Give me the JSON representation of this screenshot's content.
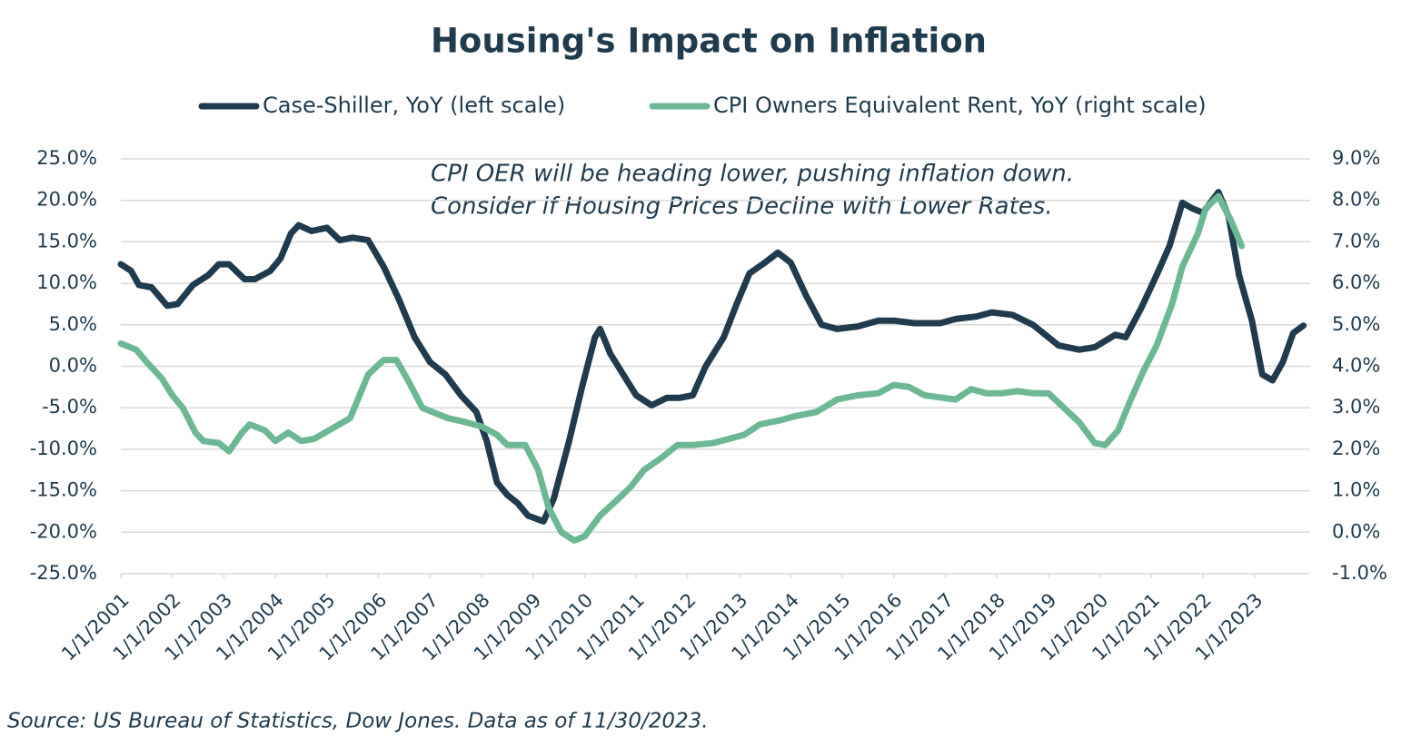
{
  "chart_data": {
    "type": "line",
    "title": "Housing's Impact on Inflation",
    "annotation": [
      "CPI OER will be heading lower, pushing inflation down.",
      "Consider if Housing Prices Decline with Lower Rates."
    ],
    "source": "Source: US Bureau of Statistics, Dow Jones. Data as of 11/30/2023.",
    "xlim": [
      2001,
      2024.08
    ],
    "xticks": [
      {
        "value": 2001,
        "label": "1/1/2001"
      },
      {
        "value": 2002,
        "label": "1/1/2002"
      },
      {
        "value": 2003,
        "label": "1/1/2003"
      },
      {
        "value": 2004,
        "label": "1/1/2004"
      },
      {
        "value": 2005,
        "label": "1/1/2005"
      },
      {
        "value": 2006,
        "label": "1/1/2006"
      },
      {
        "value": 2007,
        "label": "1/1/2007"
      },
      {
        "value": 2008,
        "label": "1/1/2008"
      },
      {
        "value": 2009,
        "label": "1/1/2009"
      },
      {
        "value": 2010,
        "label": "1/1/2010"
      },
      {
        "value": 2011,
        "label": "1/1/2011"
      },
      {
        "value": 2012,
        "label": "1/1/2012"
      },
      {
        "value": 2013,
        "label": "1/1/2013"
      },
      {
        "value": 2014,
        "label": "1/1/2014"
      },
      {
        "value": 2015,
        "label": "1/1/2015"
      },
      {
        "value": 2016,
        "label": "1/1/2016"
      },
      {
        "value": 2017,
        "label": "1/1/2017"
      },
      {
        "value": 2018,
        "label": "1/1/2018"
      },
      {
        "value": 2019,
        "label": "1/1/2019"
      },
      {
        "value": 2020,
        "label": "1/1/2020"
      },
      {
        "value": 2021,
        "label": "1/1/2021"
      },
      {
        "value": 2022,
        "label": "1/1/2022"
      },
      {
        "value": 2023,
        "label": "1/1/2023"
      }
    ],
    "ylim": [
      -25,
      25
    ],
    "yticks": [
      {
        "value": 25,
        "label": "25.0%"
      },
      {
        "value": 20,
        "label": "20.0%"
      },
      {
        "value": 15,
        "label": "15.0%"
      },
      {
        "value": 10,
        "label": "10.0%"
      },
      {
        "value": 5,
        "label": "5.0%"
      },
      {
        "value": 0,
        "label": "0.0%"
      },
      {
        "value": -5,
        "label": "-5.0%"
      },
      {
        "value": -10,
        "label": "-10.0%"
      },
      {
        "value": -15,
        "label": "-15.0%"
      },
      {
        "value": -20,
        "label": "-20.0%"
      },
      {
        "value": -25,
        "label": "-25.0%"
      }
    ],
    "y2lim": [
      -1,
      9
    ],
    "y2ticks": [
      {
        "value": 9,
        "label": "9.0%"
      },
      {
        "value": 8,
        "label": "8.0%"
      },
      {
        "value": 7,
        "label": "7.0%"
      },
      {
        "value": 6,
        "label": "6.0%"
      },
      {
        "value": 5,
        "label": "5.0%"
      },
      {
        "value": 4,
        "label": "4.0%"
      },
      {
        "value": 3,
        "label": "3.0%"
      },
      {
        "value": 2,
        "label": "2.0%"
      },
      {
        "value": 1,
        "label": "1.0%"
      },
      {
        "value": 0,
        "label": "0.0%"
      },
      {
        "value": -1,
        "label": "-1.0%"
      }
    ],
    "grid": true,
    "series": [
      {
        "name": "Case-Shiller, YoY (left scale)",
        "color": "#1f3b4d",
        "axis": "y",
        "x": [
          2001.0,
          2001.2,
          2001.35,
          2001.6,
          2001.9,
          2002.1,
          2002.4,
          2002.7,
          2002.9,
          2003.1,
          2003.4,
          2003.6,
          2003.9,
          2004.1,
          2004.3,
          2004.45,
          2004.7,
          2005.0,
          2005.25,
          2005.5,
          2005.8,
          2006.1,
          2006.4,
          2006.7,
          2007.0,
          2007.3,
          2007.6,
          2007.9,
          2008.1,
          2008.3,
          2008.5,
          2008.7,
          2008.9,
          2009.2,
          2009.4,
          2009.7,
          2009.95,
          2010.2,
          2010.3,
          2010.5,
          2010.8,
          2011.0,
          2011.3,
          2011.6,
          2011.85,
          2012.1,
          2012.35,
          2012.7,
          2012.95,
          2013.2,
          2013.5,
          2013.75,
          2014.0,
          2014.3,
          2014.6,
          2014.9,
          2015.3,
          2015.7,
          2016.0,
          2016.4,
          2016.9,
          2017.2,
          2017.6,
          2017.9,
          2018.3,
          2018.7,
          2019.0,
          2019.2,
          2019.6,
          2019.9,
          2020.3,
          2020.5,
          2020.8,
          2021.1,
          2021.35,
          2021.6,
          2021.8,
          2022.0,
          2022.3,
          2022.5,
          2022.7,
          2022.95,
          2023.15,
          2023.35,
          2023.55,
          2023.75,
          2023.95
        ],
        "values": [
          12.3,
          11.5,
          9.8,
          9.5,
          7.3,
          7.5,
          9.8,
          11.0,
          12.3,
          12.3,
          10.5,
          10.5,
          11.5,
          13.0,
          16.0,
          17.0,
          16.3,
          16.7,
          15.2,
          15.5,
          15.2,
          12,
          8,
          3.5,
          0.5,
          -1,
          -3.5,
          -5.5,
          -9,
          -14,
          -15.5,
          -16.5,
          -18,
          -18.7,
          -16,
          -9,
          -2.5,
          3.5,
          4.5,
          1.5,
          -1.5,
          -3.5,
          -4.7,
          -3.8,
          -3.8,
          -3.5,
          0,
          3.5,
          7.5,
          11.2,
          12.5,
          13.7,
          12.5,
          8.5,
          5,
          4.5,
          4.8,
          5.5,
          5.5,
          5.2,
          5.2,
          5.7,
          6,
          6.5,
          6.2,
          5,
          3.5,
          2.5,
          2.0,
          2.3,
          3.8,
          3.5,
          7,
          11,
          14.5,
          19.7,
          19,
          18.5,
          21,
          18,
          11,
          5.5,
          -1,
          -1.7,
          0.5,
          4,
          4.9
        ]
      },
      {
        "name": "CPI Owners Equivalent Rent, YoY (right scale)",
        "color": "#6db894",
        "axis": "y2",
        "x": [
          2001.0,
          2001.3,
          2001.5,
          2001.8,
          2002.0,
          2002.2,
          2002.45,
          2002.6,
          2002.9,
          2003.1,
          2003.35,
          2003.5,
          2003.8,
          2004.0,
          2004.25,
          2004.5,
          2004.75,
          2005.1,
          2005.45,
          2005.8,
          2006.1,
          2006.35,
          2006.6,
          2006.85,
          2007.15,
          2007.35,
          2007.7,
          2008.0,
          2008.3,
          2008.5,
          2008.85,
          2009.1,
          2009.3,
          2009.55,
          2009.8,
          2010.0,
          2010.3,
          2010.65,
          2010.9,
          2011.15,
          2011.5,
          2011.8,
          2012.1,
          2012.5,
          2012.8,
          2013.1,
          2013.4,
          2013.8,
          2014.1,
          2014.5,
          2014.9,
          2015.3,
          2015.7,
          2016.0,
          2016.3,
          2016.6,
          2016.9,
          2017.2,
          2017.5,
          2017.8,
          2018.1,
          2018.4,
          2018.7,
          2019.0,
          2019.3,
          2019.6,
          2019.9,
          2020.1,
          2020.35,
          2020.6,
          2020.85,
          2021.1,
          2021.4,
          2021.6,
          2021.9,
          2022.05,
          2022.3,
          2022.55,
          2022.75
        ],
        "values": [
          4.55,
          4.4,
          4.1,
          3.7,
          3.3,
          3.0,
          2.4,
          2.2,
          2.15,
          1.95,
          2.4,
          2.6,
          2.45,
          2.2,
          2.4,
          2.2,
          2.25,
          2.5,
          2.75,
          3.8,
          4.15,
          4.15,
          3.6,
          3.0,
          2.85,
          2.75,
          2.65,
          2.55,
          2.35,
          2.1,
          2.1,
          1.5,
          0.6,
          0.0,
          -0.2,
          -0.1,
          0.4,
          0.8,
          1.1,
          1.5,
          1.8,
          2.1,
          2.1,
          2.15,
          2.25,
          2.35,
          2.6,
          2.7,
          2.8,
          2.9,
          3.2,
          3.3,
          3.35,
          3.55,
          3.5,
          3.3,
          3.25,
          3.2,
          3.45,
          3.35,
          3.35,
          3.4,
          3.35,
          3.35,
          3.0,
          2.65,
          2.15,
          2.1,
          2.45,
          3.2,
          3.9,
          4.5,
          5.5,
          6.4,
          7.2,
          7.8,
          8.1,
          7.5,
          6.9
        ]
      }
    ]
  }
}
